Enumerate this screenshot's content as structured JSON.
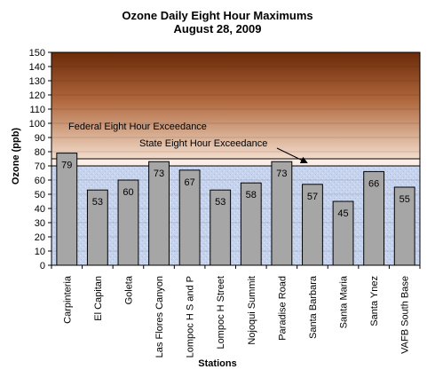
{
  "chart_data": {
    "type": "bar",
    "title": "Ozone Daily  Eight Hour Maximums",
    "subtitle": "August 28, 2009",
    "xlabel": "Stations",
    "ylabel": "Ozone (ppb)",
    "ylim": [
      0,
      150
    ],
    "ytick_step": 10,
    "categories": [
      "Carpinteria",
      "El Capitan",
      "Goleta",
      "Las Flores Canyon",
      "Lompoc H S and P",
      "Lompoc H Street",
      "Nojoqui Summit",
      "Paradise Road",
      "Santa Barbara",
      "Santa Maria",
      "Santa Ynez",
      "VAFB South Base"
    ],
    "values": [
      79,
      53,
      60,
      73,
      67,
      53,
      58,
      73,
      57,
      45,
      66,
      55
    ],
    "annotations": [
      {
        "text": "Federal Eight Hour Exceedance",
        "value": 75
      },
      {
        "text": "State Eight Hour Exceedance",
        "value": 70
      }
    ],
    "bar_color": "#a6a6a6",
    "gradient_top": "#6b2a08",
    "gradient_bottom": "#f3dccb",
    "lower_band_color": "#c6d3ee"
  }
}
